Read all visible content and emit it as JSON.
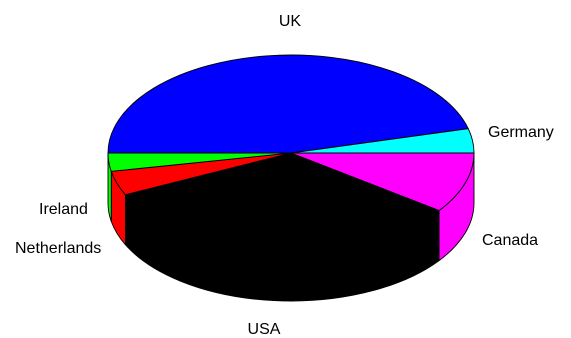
{
  "chart_data": {
    "type": "pie",
    "style": "3d",
    "categories": [
      "UK",
      "Germany",
      "Canada",
      "USA",
      "Netherlands",
      "Ireland"
    ],
    "values": [
      46,
      4,
      10,
      33,
      4,
      3
    ],
    "colors": [
      "#0000ff",
      "#00ffff",
      "#ff00ff",
      "#000000",
      "#ff0000",
      "#00ff00"
    ],
    "title": "",
    "legend": "none"
  }
}
